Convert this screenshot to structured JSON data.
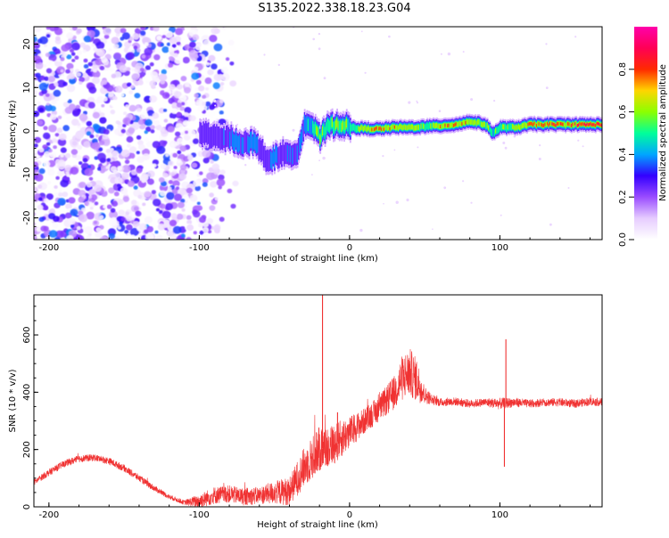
{
  "figure_title": "S135.2022.338.18.23.G04",
  "chart_data": [
    {
      "type": "heatmap",
      "xlabel": "Height of straight line (km)",
      "ylabel": "Frequency (Hz)",
      "xlim": [
        -210,
        168
      ],
      "ylim": [
        -25,
        24
      ],
      "x_ticks": [
        -200,
        -100,
        0,
        100
      ],
      "x_tick_labels": [
        "-200",
        "-100",
        "0",
        "100"
      ],
      "y_ticks": [
        -20,
        -10,
        0,
        10,
        20
      ],
      "y_tick_labels": [
        "-20",
        "-10",
        "0",
        "10",
        "20"
      ],
      "colorbar": {
        "label": "Normalized spectral amplitude",
        "range": [
          0,
          1
        ],
        "ticks": [
          0.0,
          0.2,
          0.4,
          0.6,
          0.8
        ],
        "tick_labels": [
          "0.0",
          "0.2",
          "0.4",
          "0.6",
          "0.8"
        ],
        "colormap": [
          "#ffffff",
          "#e6ccff",
          "#9a4cff",
          "#3300ff",
          "#00a6ff",
          "#00ff9a",
          "#8cff00",
          "#ffd500",
          "#ff2a00",
          "#ff0055",
          "#ff00aa"
        ]
      },
      "noise_region_x": [
        -210,
        -85
      ],
      "ridge": [
        {
          "x": -100,
          "f": -0.5,
          "amp": 0.3
        },
        {
          "x": -95,
          "f": -0.8,
          "amp": 0.35
        },
        {
          "x": -90,
          "f": -1.5,
          "amp": 0.3
        },
        {
          "x": -85,
          "f": -2.0,
          "amp": 0.35
        },
        {
          "x": -80,
          "f": -1.5,
          "amp": 0.4
        },
        {
          "x": -75,
          "f": -2.5,
          "amp": 0.45
        },
        {
          "x": -70,
          "f": -3.0,
          "amp": 0.4
        },
        {
          "x": -65,
          "f": -2.5,
          "amp": 0.45
        },
        {
          "x": -60,
          "f": -4.0,
          "amp": 0.4
        },
        {
          "x": -55,
          "f": -7.0,
          "amp": 0.35
        },
        {
          "x": -50,
          "f": -6.0,
          "amp": 0.4
        },
        {
          "x": -45,
          "f": -5.0,
          "amp": 0.35
        },
        {
          "x": -40,
          "f": -6.0,
          "amp": 0.4
        },
        {
          "x": -35,
          "f": -4.5,
          "amp": 0.35
        },
        {
          "x": -30,
          "f": 2.0,
          "amp": 0.45
        },
        {
          "x": -25,
          "f": 1.0,
          "amp": 0.5
        },
        {
          "x": -20,
          "f": -1.5,
          "amp": 0.7
        },
        {
          "x": -15,
          "f": 1.0,
          "amp": 0.55
        },
        {
          "x": -10,
          "f": 1.5,
          "amp": 0.6
        },
        {
          "x": -5,
          "f": 1.5,
          "amp": 0.65
        },
        {
          "x": 0,
          "f": 0.8,
          "amp": 0.55
        },
        {
          "x": 10,
          "f": 0.5,
          "amp": 0.7
        },
        {
          "x": 20,
          "f": 0.5,
          "amp": 0.8
        },
        {
          "x": 30,
          "f": 0.8,
          "amp": 0.75
        },
        {
          "x": 40,
          "f": 0.8,
          "amp": 0.7
        },
        {
          "x": 50,
          "f": 1.0,
          "amp": 0.65
        },
        {
          "x": 60,
          "f": 1.2,
          "amp": 0.75
        },
        {
          "x": 70,
          "f": 1.5,
          "amp": 0.8
        },
        {
          "x": 80,
          "f": 2.2,
          "amp": 0.75
        },
        {
          "x": 90,
          "f": 1.5,
          "amp": 0.65
        },
        {
          "x": 95,
          "f": -0.5,
          "amp": 0.55
        },
        {
          "x": 100,
          "f": 0.8,
          "amp": 0.6
        },
        {
          "x": 110,
          "f": 0.8,
          "amp": 0.7
        },
        {
          "x": 120,
          "f": 1.5,
          "amp": 0.85
        },
        {
          "x": 140,
          "f": 1.5,
          "amp": 0.9
        },
        {
          "x": 168,
          "f": 1.5,
          "amp": 0.92
        }
      ]
    },
    {
      "type": "line",
      "xlabel": "Height of straight line (km)",
      "ylabel": "SNR (10 * v/v)",
      "xlim": [
        -210,
        168
      ],
      "ylim": [
        0,
        740
      ],
      "x_ticks": [
        -200,
        -100,
        0,
        100
      ],
      "x_tick_labels": [
        "-200",
        "-100",
        "0",
        "100"
      ],
      "y_ticks": [
        0,
        200,
        400,
        600
      ],
      "y_tick_labels": [
        "0",
        "200",
        "400",
        "600"
      ],
      "line_color": "#f03232",
      "series": [
        {
          "x": [
            -210,
            -200,
            -190,
            -180,
            -170,
            -160,
            -150,
            -140,
            -130,
            -120,
            -110,
            -100,
            -90,
            -80,
            -70,
            -60,
            -50,
            -40,
            -30,
            -25,
            -20,
            -15,
            -10,
            -5,
            0,
            10,
            20,
            30,
            35,
            40,
            45,
            50,
            55,
            60,
            70,
            80,
            90,
            100,
            110,
            120,
            130,
            140,
            150,
            160,
            168
          ],
          "y": [
            85,
            120,
            150,
            168,
            172,
            160,
            135,
            100,
            65,
            35,
            15,
            20,
            40,
            45,
            35,
            40,
            50,
            55,
            140,
            170,
            200,
            210,
            220,
            240,
            260,
            300,
            345,
            400,
            450,
            470,
            440,
            390,
            375,
            365,
            368,
            360,
            365,
            360,
            365,
            360,
            365,
            365,
            360,
            368,
            365
          ],
          "noise": [
            10,
            12,
            12,
            12,
            12,
            12,
            12,
            12,
            10,
            8,
            8,
            25,
            30,
            30,
            30,
            30,
            40,
            50,
            70,
            75,
            80,
            75,
            70,
            65,
            55,
            45,
            45,
            60,
            80,
            85,
            75,
            30,
            18,
            14,
            14,
            14,
            14,
            20,
            16,
            14,
            14,
            14,
            14,
            14,
            14
          ]
        }
      ],
      "spikes": [
        {
          "x": -18,
          "y": 740
        },
        {
          "x": -22,
          "y": 260
        },
        {
          "x": -8,
          "y": 330
        },
        {
          "x": 3,
          "y": 270
        },
        {
          "x": 104,
          "y": 585
        },
        {
          "x": 103,
          "y": 140
        }
      ]
    }
  ]
}
